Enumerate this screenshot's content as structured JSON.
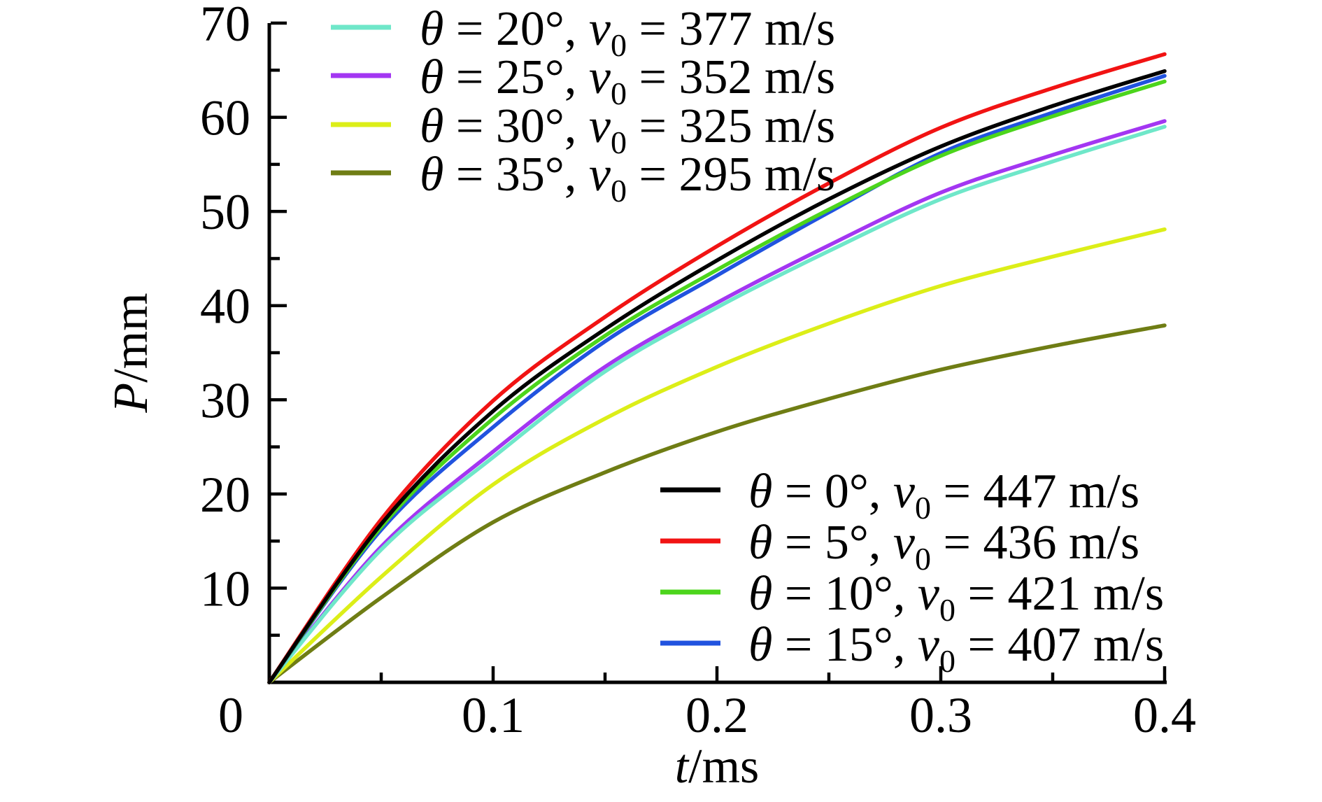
{
  "figure": {
    "origin_label": "0",
    "xlabel": {
      "sym": "t",
      "unit": "/ms"
    },
    "ylabel": {
      "sym": "P",
      "unit": "/mm"
    },
    "x_ticks": {
      "major": [
        {
          "t": 0.1,
          "label": "0.1"
        },
        {
          "t": 0.2,
          "label": "0.2"
        },
        {
          "t": 0.3,
          "label": "0.3"
        },
        {
          "t": 0.4,
          "label": "0.4"
        }
      ],
      "minor": [
        0.05,
        0.15,
        0.25,
        0.35
      ]
    },
    "y_ticks": {
      "major": [
        {
          "p": 10,
          "label": "10"
        },
        {
          "p": 20,
          "label": "20"
        },
        {
          "p": 30,
          "label": "30"
        },
        {
          "p": 40,
          "label": "40"
        },
        {
          "p": 50,
          "label": "50"
        },
        {
          "p": 60,
          "label": "60"
        },
        {
          "p": 70,
          "label": "70"
        }
      ],
      "minor": [
        5,
        15,
        25,
        35,
        45,
        55,
        65
      ]
    }
  },
  "symbols": {
    "theta": "θ",
    "v": "v",
    "sub0": "0",
    "eq": " = ",
    "comma": ", "
  },
  "legend_top": [
    {
      "theta": "20°",
      "v0": "377 m/s",
      "color": "#6FE7C9"
    },
    {
      "theta": "25°",
      "v0": "352 m/s",
      "color": "#A336F2"
    },
    {
      "theta": "30°",
      "v0": "325 m/s",
      "color": "#DCEE18"
    },
    {
      "theta": "35°",
      "v0": "295 m/s",
      "color": "#6F7D14"
    }
  ],
  "legend_bottom": [
    {
      "theta": "0°",
      "v0": "447 m/s",
      "color": "#000000"
    },
    {
      "theta": "5°",
      "v0": "436 m/s",
      "color": "#F11313"
    },
    {
      "theta": "10°",
      "v0": "421 m/s",
      "color": "#4CD51C"
    },
    {
      "theta": "15°",
      "v0": "407 m/s",
      "color": "#2153DF"
    }
  ],
  "chart_data": {
    "type": "line",
    "title": "",
    "xlabel": "t/ms",
    "ylabel": "P/mm",
    "xlim": [
      0,
      0.4
    ],
    "ylim": [
      0,
      70
    ],
    "grid": false,
    "legend_positions": [
      "upper-left",
      "lower-right"
    ],
    "x": [
      0,
      0.05,
      0.1,
      0.15,
      0.2,
      0.25,
      0.3,
      0.35,
      0.4
    ],
    "series": [
      {
        "name": "θ = 0°, v0 = 447 m/s",
        "theta": "0°",
        "v0": "447 m/s",
        "color": "#000000",
        "values": [
          0,
          16.8,
          28.8,
          37.5,
          44.8,
          51.3,
          56.9,
          61.2,
          64.9
        ]
      },
      {
        "name": "θ = 5°, v0 = 436 m/s",
        "theta": "5°",
        "v0": "436 m/s",
        "color": "#F11313",
        "values": [
          0,
          17.3,
          29.9,
          38.8,
          46.3,
          53.0,
          58.9,
          63.1,
          66.7
        ]
      },
      {
        "name": "θ = 10°, v0 = 421 m/s",
        "theta": "10°",
        "v0": "421 m/s",
        "color": "#4CD51C",
        "values": [
          0,
          16.5,
          28.0,
          36.8,
          43.8,
          50.2,
          55.9,
          60.1,
          63.8
        ]
      },
      {
        "name": "θ = 15°, v0 = 407 m/s",
        "theta": "15°",
        "v0": "407 m/s",
        "color": "#2153DF",
        "values": [
          0,
          16.2,
          27.1,
          36.2,
          43.2,
          49.9,
          56.2,
          60.5,
          64.4
        ]
      },
      {
        "name": "θ = 20°, v0 = 377 m/s",
        "theta": "20°",
        "v0": "377 m/s",
        "color": "#6FE7C9",
        "values": [
          0,
          14.1,
          23.9,
          33.0,
          39.8,
          45.8,
          51.3,
          55.3,
          59.0
        ]
      },
      {
        "name": "θ = 25°, v0 = 352 m/s",
        "theta": "25°",
        "v0": "352 m/s",
        "color": "#A336F2",
        "values": [
          0,
          14.4,
          24.5,
          33.5,
          40.3,
          46.4,
          52.0,
          56.0,
          59.6
        ]
      },
      {
        "name": "θ = 30°, v0 = 325 m/s",
        "theta": "30°",
        "v0": "325 m/s",
        "color": "#DCEE18",
        "values": [
          0,
          11.2,
          21.0,
          28.0,
          33.5,
          38.1,
          42.1,
          45.2,
          48.1
        ]
      },
      {
        "name": "θ = 35°, v0 = 295 m/s",
        "theta": "35°",
        "v0": "295 m/s",
        "color": "#6F7D14",
        "values": [
          0,
          9.0,
          17.0,
          22.3,
          26.6,
          30.1,
          33.2,
          35.7,
          37.9
        ]
      }
    ]
  }
}
